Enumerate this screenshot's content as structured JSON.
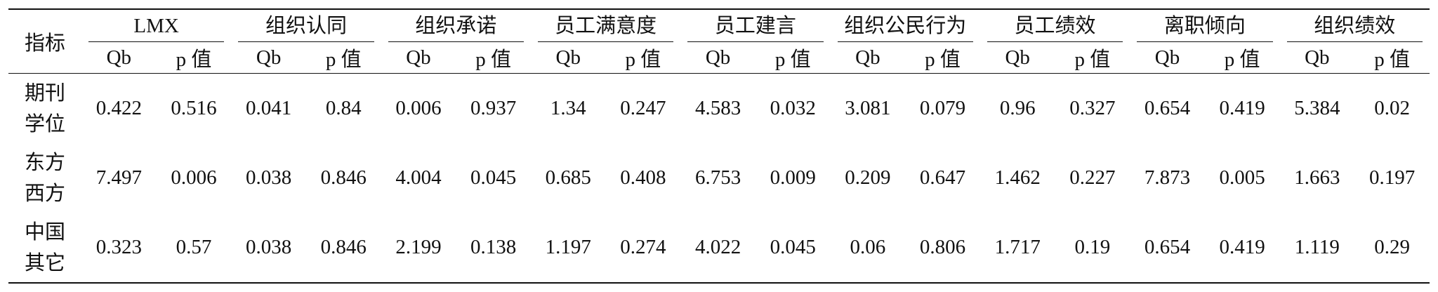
{
  "table": {
    "corner": "指标",
    "groups": [
      "LMX",
      "组织认同",
      "组织承诺",
      "员工满意度",
      "员工建言",
      "组织公民行为",
      "员工绩效",
      "离职倾向",
      "组织绩效"
    ],
    "subheaders": [
      "Qb",
      "p 值",
      "Qb",
      "p 值",
      "Qb",
      "p 值",
      "Qb",
      "p 值",
      "Qb",
      "p 值",
      "Qb",
      "p 值",
      "Qb",
      "p 值",
      "Qb",
      "p 值",
      "Qb",
      "p 值"
    ],
    "rows": [
      {
        "label": [
          "期刊",
          "学位"
        ],
        "cells": [
          "0.422",
          "0.516",
          "0.041",
          "0.84",
          "0.006",
          "0.937",
          "1.34",
          "0.247",
          "4.583",
          "0.032",
          "3.081",
          "0.079",
          "0.96",
          "0.327",
          "0.654",
          "0.419",
          "5.384",
          "0.02"
        ]
      },
      {
        "label": [
          "东方",
          "西方"
        ],
        "cells": [
          "7.497",
          "0.006",
          "0.038",
          "0.846",
          "4.004",
          "0.045",
          "0.685",
          "0.408",
          "6.753",
          "0.009",
          "0.209",
          "0.647",
          "1.462",
          "0.227",
          "7.873",
          "0.005",
          "1.663",
          "0.197"
        ]
      },
      {
        "label": [
          "中国",
          "其它"
        ],
        "cells": [
          "0.323",
          "0.57",
          "0.038",
          "0.846",
          "2.199",
          "0.138",
          "1.197",
          "0.274",
          "4.022",
          "0.045",
          "0.06",
          "0.806",
          "1.717",
          "0.19",
          "0.654",
          "0.419",
          "1.119",
          "0.29"
        ]
      }
    ]
  }
}
